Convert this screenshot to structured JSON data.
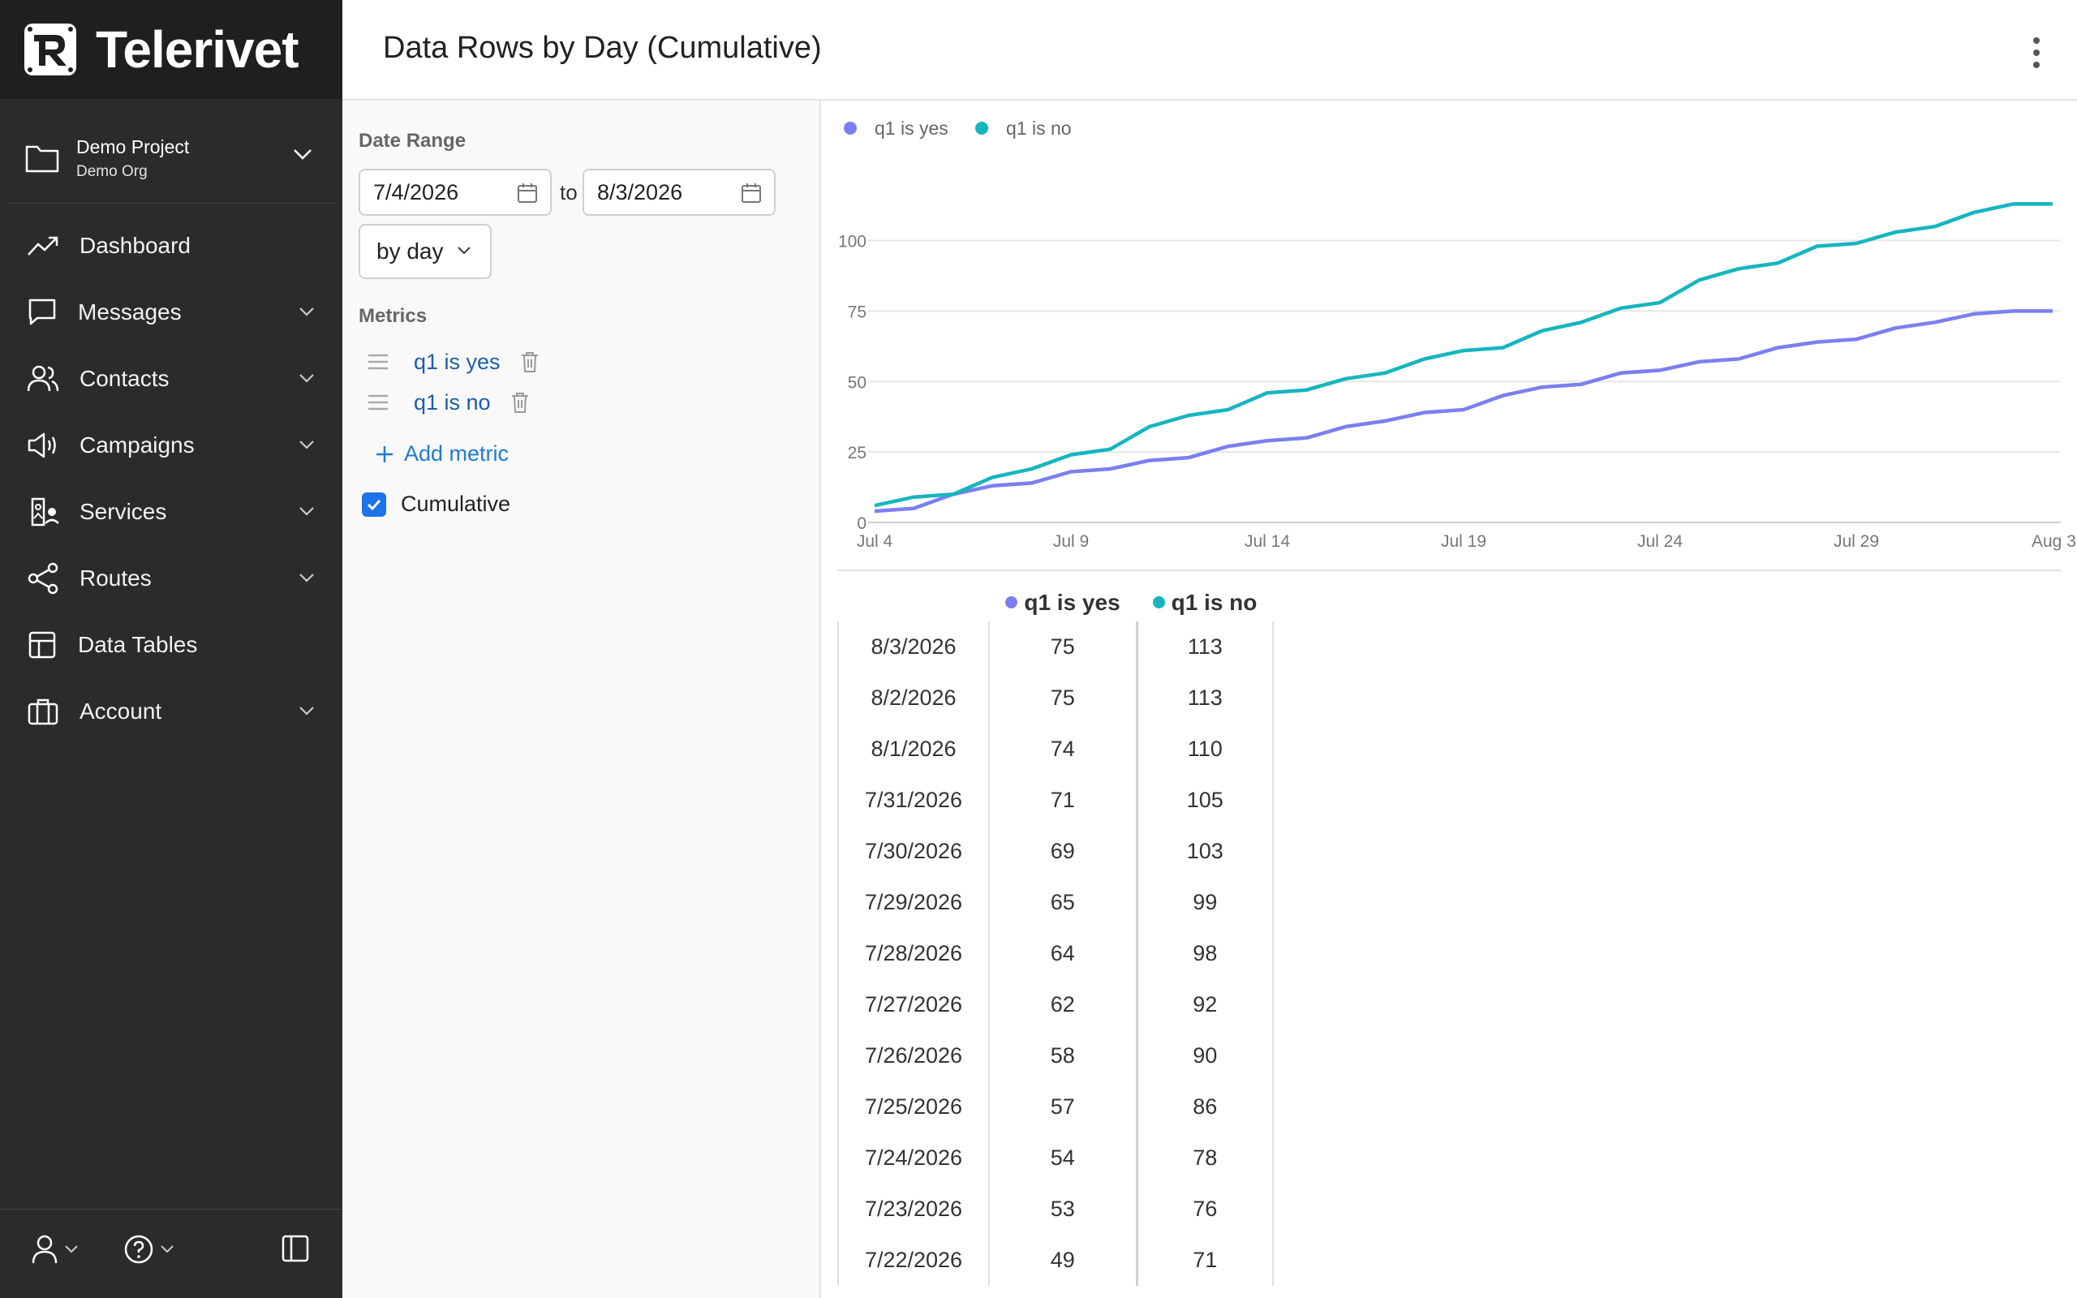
{
  "app": {
    "name": "Telerivet"
  },
  "project": {
    "name": "Demo Project",
    "org": "Demo Org"
  },
  "nav": [
    {
      "label": "Dashboard",
      "icon": "trend-icon",
      "expandable": false
    },
    {
      "label": "Messages",
      "icon": "message-icon",
      "expandable": true
    },
    {
      "label": "Contacts",
      "icon": "contacts-icon",
      "expandable": true
    },
    {
      "label": "Campaigns",
      "icon": "megaphone-icon",
      "expandable": true
    },
    {
      "label": "Services",
      "icon": "services-icon",
      "expandable": true
    },
    {
      "label": "Routes",
      "icon": "share-icon",
      "expandable": true
    },
    {
      "label": "Data Tables",
      "icon": "table-icon",
      "expandable": false
    },
    {
      "label": "Account",
      "icon": "briefcase-icon",
      "expandable": true
    }
  ],
  "header": {
    "title": "Data Rows by Day (Cumulative)"
  },
  "panel": {
    "date_range_label": "Date Range",
    "start_date": "7/4/2026",
    "to_label": "to",
    "end_date": "8/3/2026",
    "group_by": "by day",
    "metrics_label": "Metrics",
    "metrics": [
      {
        "label": "q1 is yes"
      },
      {
        "label": "q1 is no"
      }
    ],
    "add_metric_label": "Add metric",
    "cumulative_label": "Cumulative",
    "cumulative_checked": true
  },
  "colors": {
    "yes": "#7b7ff0",
    "no": "#16b5bf",
    "sidebar": "#2b2b2b",
    "accent": "#1e73e8"
  },
  "chart_data": {
    "type": "line",
    "x": [
      "7/4/2026",
      "7/5/2026",
      "7/6/2026",
      "7/7/2026",
      "7/8/2026",
      "7/9/2026",
      "7/10/2026",
      "7/11/2026",
      "7/12/2026",
      "7/13/2026",
      "7/14/2026",
      "7/15/2026",
      "7/16/2026",
      "7/17/2026",
      "7/18/2026",
      "7/19/2026",
      "7/20/2026",
      "7/21/2026",
      "7/22/2026",
      "7/23/2026",
      "7/24/2026",
      "7/25/2026",
      "7/26/2026",
      "7/27/2026",
      "7/28/2026",
      "7/29/2026",
      "7/30/2026",
      "7/31/2026",
      "8/1/2026",
      "8/2/2026",
      "8/3/2026"
    ],
    "x_tick_labels": [
      "Jul 4",
      "Jul 9",
      "Jul 14",
      "Jul 19",
      "Jul 24",
      "Jul 29",
      "Aug 3"
    ],
    "x_tick_index": [
      0,
      5,
      10,
      15,
      20,
      25,
      30
    ],
    "y_ticks": [
      0,
      25,
      50,
      75,
      100
    ],
    "ylim": [
      0,
      118
    ],
    "grid": true,
    "legend": "top-left",
    "series": [
      {
        "name": "q1 is yes",
        "values": [
          4,
          5,
          10,
          13,
          14,
          18,
          19,
          22,
          23,
          27,
          29,
          30,
          34,
          36,
          39,
          40,
          45,
          48,
          49,
          53,
          54,
          57,
          58,
          62,
          64,
          65,
          69,
          71,
          74,
          75,
          75
        ]
      },
      {
        "name": "q1 is no",
        "values": [
          6,
          9,
          10,
          16,
          19,
          24,
          26,
          34,
          38,
          40,
          46,
          47,
          51,
          53,
          58,
          61,
          62,
          68,
          71,
          76,
          78,
          86,
          90,
          92,
          98,
          99,
          103,
          105,
          110,
          113,
          113
        ]
      }
    ]
  },
  "table": {
    "headers": [
      "q1 is yes",
      "q1 is no"
    ],
    "rows": [
      {
        "date": "8/3/2026",
        "yes": "75",
        "no": "113"
      },
      {
        "date": "8/2/2026",
        "yes": "75",
        "no": "113"
      },
      {
        "date": "8/1/2026",
        "yes": "74",
        "no": "110"
      },
      {
        "date": "7/31/2026",
        "yes": "71",
        "no": "105"
      },
      {
        "date": "7/30/2026",
        "yes": "69",
        "no": "103"
      },
      {
        "date": "7/29/2026",
        "yes": "65",
        "no": "99"
      },
      {
        "date": "7/28/2026",
        "yes": "64",
        "no": "98"
      },
      {
        "date": "7/27/2026",
        "yes": "62",
        "no": "92"
      },
      {
        "date": "7/26/2026",
        "yes": "58",
        "no": "90"
      },
      {
        "date": "7/25/2026",
        "yes": "57",
        "no": "86"
      },
      {
        "date": "7/24/2026",
        "yes": "54",
        "no": "78"
      },
      {
        "date": "7/23/2026",
        "yes": "53",
        "no": "76"
      },
      {
        "date": "7/22/2026",
        "yes": "49",
        "no": "71"
      }
    ]
  }
}
